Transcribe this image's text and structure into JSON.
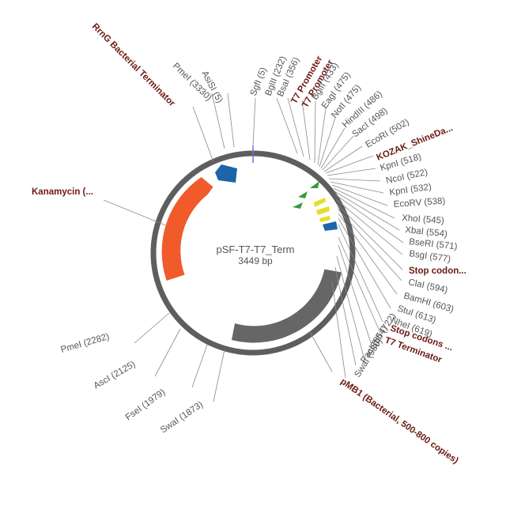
{
  "plasmid": {
    "name": "pSF-T7-T7_Term",
    "size_label": "3449 bp",
    "length": 3449
  },
  "colors": {
    "backbone": "#5e5e5e",
    "kanamycin": "#f15a2b",
    "promoter": "#1d64a8",
    "t7_promoter": "#3a9a3a",
    "stop": "#e3df2e",
    "pmb1": "#666666",
    "site_text": "#555555",
    "feature_text": "#6b1a14"
  },
  "features": [
    {
      "id": "rrng",
      "label": "RrnG Bacterial Terminator",
      "start": 3250,
      "end": 3380,
      "color": "#1d64a8"
    },
    {
      "id": "kanamycin",
      "label": "Kanamycin (...",
      "start": 2530,
      "end": 3070,
      "color": "#f15a2b"
    },
    {
      "id": "t7-promoter-1",
      "label": "T7 Promoter",
      "start": 380,
      "end": 405,
      "color": "#3a9a3a"
    },
    {
      "id": "t7-promoter-2",
      "label": "T7 Promoter",
      "start": 415,
      "end": 440,
      "color": "#3a9a3a"
    },
    {
      "id": "kozak",
      "label": "KOZAK_ShineDa...",
      "start": 508,
      "end": 516,
      "color": "#3a9a3a"
    },
    {
      "id": "stop-1",
      "label": "Stop codon...",
      "start": 540,
      "end": 575,
      "color": "#e3df2e"
    },
    {
      "id": "stop-2",
      "label": "Stop codons ...",
      "start": 585,
      "end": 605,
      "color": "#e3df2e"
    },
    {
      "id": "t7-terminator",
      "label": "T7 Terminator",
      "start": 625,
      "end": 670,
      "color": "#1d64a8"
    },
    {
      "id": "pmb1",
      "label": "pMB1 (Bacterial, 500-800 copies)",
      "start": 1150,
      "end": 1690,
      "color": "#666666"
    }
  ],
  "sites": [
    {
      "label": "SgfI (5)"
    },
    {
      "label": "BglII (232)"
    },
    {
      "label": "BsaI (356)"
    },
    {
      "label": "BglII (433)"
    },
    {
      "label": "EagI (475)"
    },
    {
      "label": "NotI (475)"
    },
    {
      "label": "HindIII (486)"
    },
    {
      "label": "SacI (498)"
    },
    {
      "label": "EcoRI (502)"
    },
    {
      "label": "KpnI (518)"
    },
    {
      "label": "NcoI (522)"
    },
    {
      "label": "KpnI (532)"
    },
    {
      "label": "EcoRV (538)"
    },
    {
      "label": "XhoI (545)"
    },
    {
      "label": "XbaI (554)"
    },
    {
      "label": "BseRI (571)"
    },
    {
      "label": "BsgI (577)"
    },
    {
      "label": "ClaI (594)"
    },
    {
      "label": "BamHI (603)"
    },
    {
      "label": "StuI (613)"
    },
    {
      "label": "NheI (619)"
    },
    {
      "label": "SbfI (722)"
    },
    {
      "label": "PacI (854)"
    },
    {
      "label": "SwaI (980)"
    },
    {
      "label": "SwaI (1873)"
    },
    {
      "label": "FseI (1979)"
    },
    {
      "label": "AscI (2125)"
    },
    {
      "label": "PmeI (2282)"
    },
    {
      "label": "PmeI (3330)"
    },
    {
      "label": "AsiSI (5)"
    }
  ]
}
